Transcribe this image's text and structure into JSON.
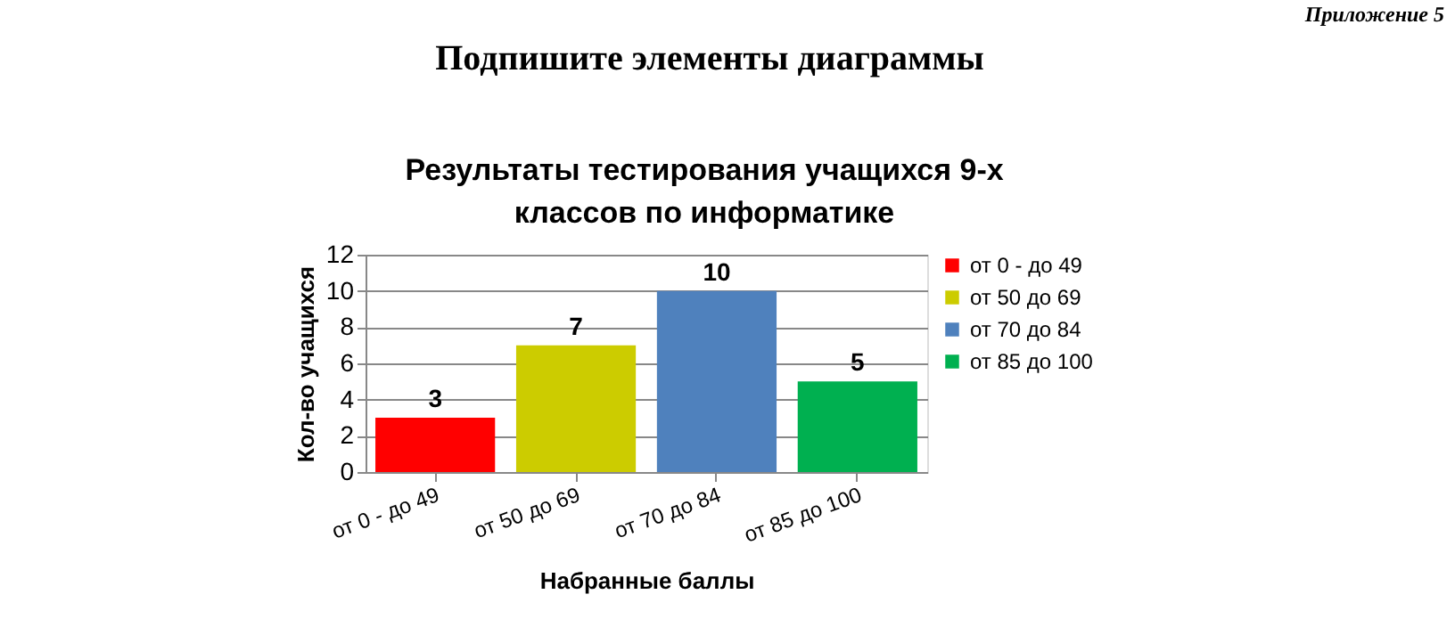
{
  "chart_data": {
    "type": "bar",
    "title": [
      "Результаты тестирования учащихся 9-х",
      "классов по информатике"
    ],
    "xlabel": "Набранные баллы",
    "ylabel": "Кол-во учащихся",
    "categories": [
      "от 0 - до 49",
      "от 50 до 69",
      "от 70 до 84",
      "от 85 до 100"
    ],
    "series": [
      {
        "name": "от 0 - до 49",
        "color": "#ff0000",
        "values": [
          3,
          null,
          null,
          null
        ]
      },
      {
        "name": "от 50 до 69",
        "color": "#cccc00",
        "values": [
          null,
          7,
          null,
          null
        ]
      },
      {
        "name": "от 70 до 84",
        "color": "#4f81bd",
        "values": [
          null,
          null,
          10,
          null
        ]
      },
      {
        "name": "от 85 до 100",
        "color": "#00b050",
        "values": [
          null,
          null,
          null,
          5
        ]
      }
    ],
    "ylim": [
      0,
      12
    ],
    "yticks": [
      0,
      2,
      4,
      6,
      8,
      10,
      12
    ],
    "grid": "y",
    "legend": "right",
    "data_labels": true,
    "annotations": [
      "Приложение 5",
      "Подпишите элементы диаграммы"
    ]
  }
}
